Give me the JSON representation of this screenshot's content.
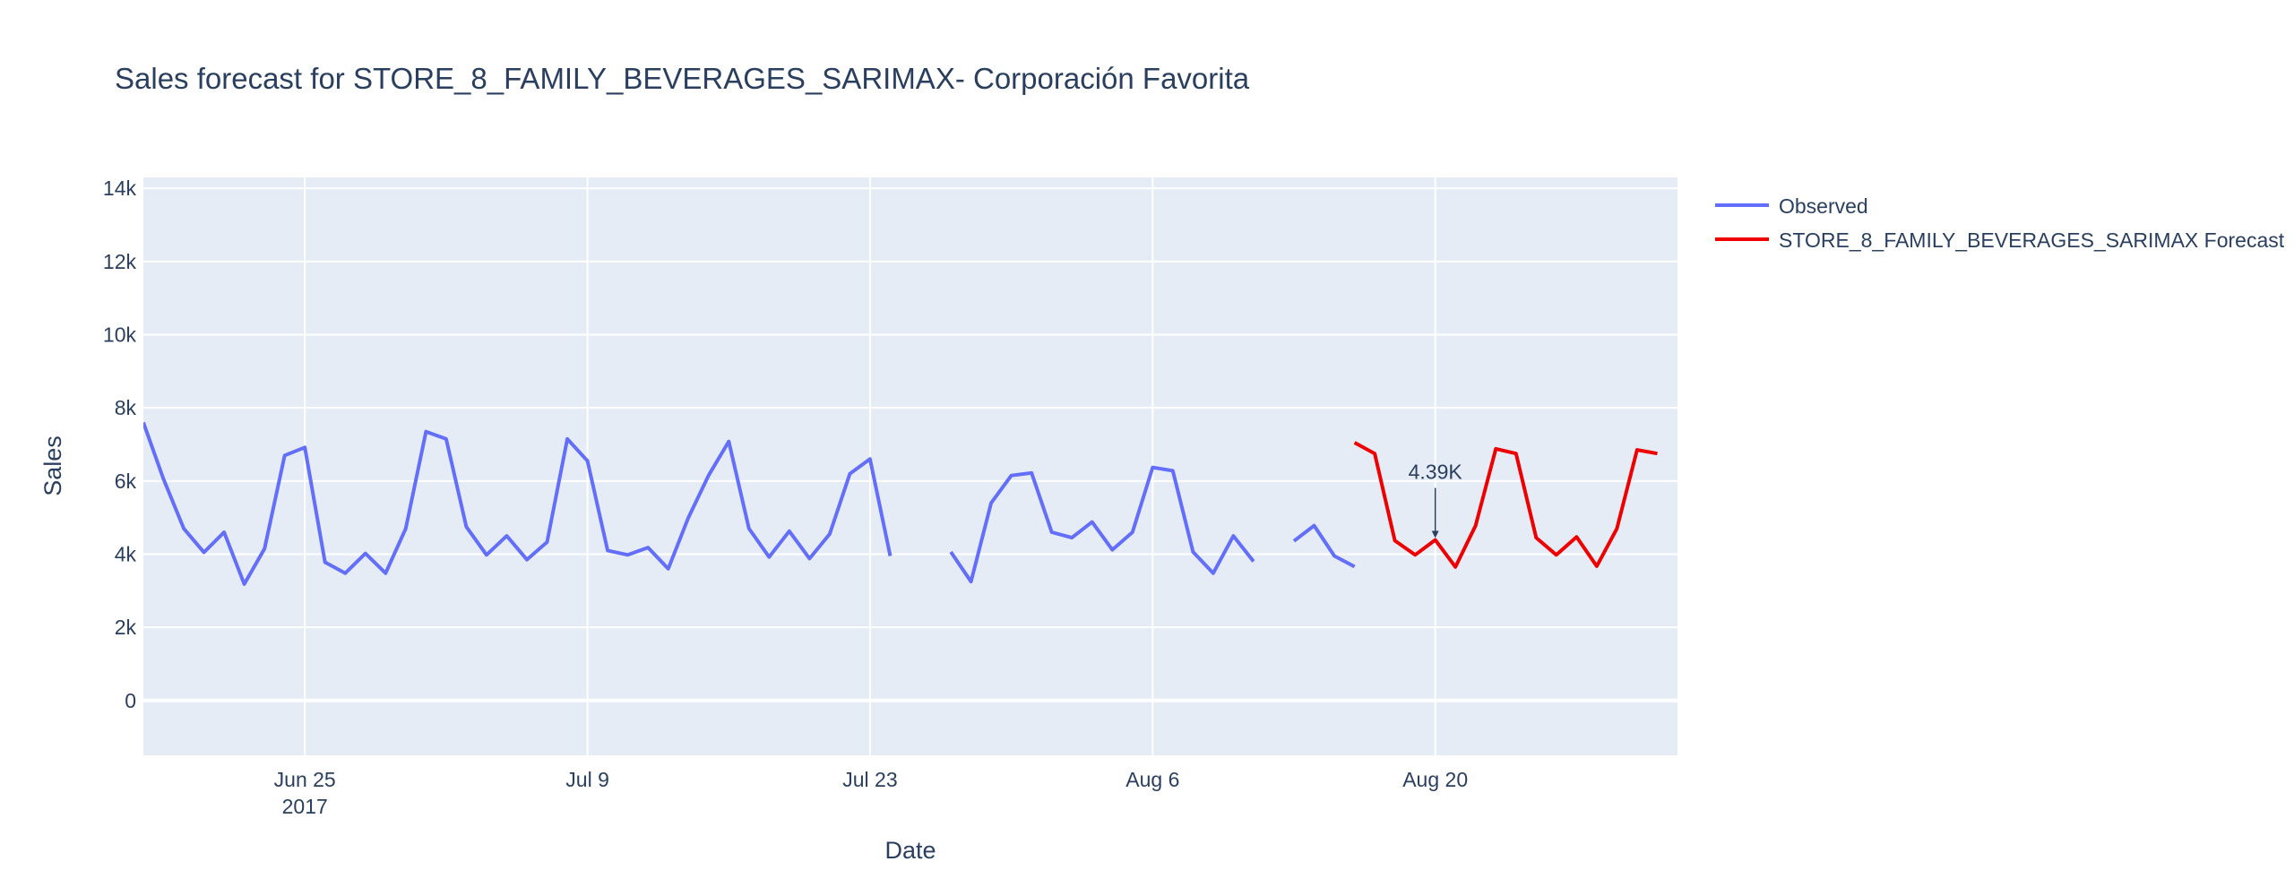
{
  "chart_data": {
    "type": "line",
    "title": "Sales forecast for STORE_8_FAMILY_BEVERAGES_SARIMAX- Corporación Favorita",
    "xlabel": "Date",
    "ylabel": "Sales",
    "x_range": [
      "2017-06-17",
      "2017-09-01"
    ],
    "ylim": [
      -1500,
      14300
    ],
    "x_ticks": [
      {
        "date": "2017-06-25",
        "label": "Jun 25",
        "sublabel": "2017"
      },
      {
        "date": "2017-07-09",
        "label": "Jul 9",
        "sublabel": ""
      },
      {
        "date": "2017-07-23",
        "label": "Jul 23",
        "sublabel": ""
      },
      {
        "date": "2017-08-06",
        "label": "Aug 6",
        "sublabel": ""
      },
      {
        "date": "2017-08-20",
        "label": "Aug 20",
        "sublabel": ""
      }
    ],
    "y_ticks": [
      {
        "value": 0,
        "label": "0"
      },
      {
        "value": 2000,
        "label": "2k"
      },
      {
        "value": 4000,
        "label": "4k"
      },
      {
        "value": 6000,
        "label": "6k"
      },
      {
        "value": 8000,
        "label": "8k"
      },
      {
        "value": 10000,
        "label": "10k"
      },
      {
        "value": 12000,
        "label": "12k"
      },
      {
        "value": 14000,
        "label": "14k"
      }
    ],
    "grid": true,
    "legend_position": "top-right, outside plot",
    "series": [
      {
        "name": "Observed",
        "color": "#636efa",
        "points": [
          [
            "2017-06-17",
            7600
          ],
          [
            "2017-06-18",
            6050
          ],
          [
            "2017-06-19",
            4700
          ],
          [
            "2017-06-20",
            4050
          ],
          [
            "2017-06-21",
            4600
          ],
          [
            "2017-06-22",
            3180
          ],
          [
            "2017-06-23",
            4150
          ],
          [
            "2017-06-24",
            6700
          ],
          [
            "2017-06-25",
            6920
          ],
          [
            "2017-06-26",
            3780
          ],
          [
            "2017-06-27",
            3480
          ],
          [
            "2017-06-28",
            4020
          ],
          [
            "2017-06-29",
            3480
          ],
          [
            "2017-06-30",
            4700
          ],
          [
            "2017-07-01",
            7350
          ],
          [
            "2017-07-02",
            7150
          ],
          [
            "2017-07-03",
            4750
          ],
          [
            "2017-07-04",
            3980
          ],
          [
            "2017-07-05",
            4500
          ],
          [
            "2017-07-06",
            3850
          ],
          [
            "2017-07-07",
            4330
          ],
          [
            "2017-07-08",
            7150
          ],
          [
            "2017-07-09",
            6550
          ],
          [
            "2017-07-10",
            4100
          ],
          [
            "2017-07-11",
            3980
          ],
          [
            "2017-07-12",
            4180
          ],
          [
            "2017-07-13",
            3600
          ],
          [
            "2017-07-14",
            5000
          ],
          [
            "2017-07-15",
            6150
          ],
          [
            "2017-07-16",
            7080
          ],
          [
            "2017-07-17",
            4700
          ],
          [
            "2017-07-18",
            3920
          ],
          [
            "2017-07-19",
            4630
          ],
          [
            "2017-07-20",
            3880
          ],
          [
            "2017-07-21",
            4550
          ],
          [
            "2017-07-22",
            6200
          ],
          [
            "2017-07-23",
            6600
          ],
          [
            "2017-07-24",
            3950
          ],
          [
            "2017-07-27",
            4060
          ],
          [
            "2017-07-28",
            3250
          ],
          [
            "2017-07-29",
            5400
          ],
          [
            "2017-07-30",
            6150
          ],
          [
            "2017-07-31",
            6220
          ],
          [
            "2017-08-01",
            4600
          ],
          [
            "2017-08-02",
            4450
          ],
          [
            "2017-08-03",
            4880
          ],
          [
            "2017-08-04",
            4120
          ],
          [
            "2017-08-05",
            4600
          ],
          [
            "2017-08-06",
            6370
          ],
          [
            "2017-08-07",
            6280
          ],
          [
            "2017-08-08",
            4060
          ],
          [
            "2017-08-09",
            3480
          ],
          [
            "2017-08-10",
            4500
          ],
          [
            "2017-08-11",
            3800
          ],
          [
            "2017-08-13",
            4360
          ],
          [
            "2017-08-14",
            4780
          ],
          [
            "2017-08-15",
            3950
          ],
          [
            "2017-08-16",
            3660
          ]
        ]
      },
      {
        "name": "STORE_8_FAMILY_BEVERAGES_SARIMAX Forecast",
        "color": "#ee0000",
        "points": [
          [
            "2017-08-16",
            7050
          ],
          [
            "2017-08-17",
            6750
          ],
          [
            "2017-08-18",
            4370
          ],
          [
            "2017-08-19",
            3980
          ],
          [
            "2017-08-20",
            4390
          ],
          [
            "2017-08-21",
            3650
          ],
          [
            "2017-08-22",
            4780
          ],
          [
            "2017-08-23",
            6880
          ],
          [
            "2017-08-24",
            6750
          ],
          [
            "2017-08-25",
            4450
          ],
          [
            "2017-08-26",
            3980
          ],
          [
            "2017-08-27",
            4470
          ],
          [
            "2017-08-28",
            3670
          ],
          [
            "2017-08-29",
            4700
          ],
          [
            "2017-08-30",
            6850
          ],
          [
            "2017-08-31",
            6750
          ]
        ]
      }
    ],
    "annotations": [
      {
        "date": "2017-08-20",
        "value": 4390,
        "text": "4.39K"
      }
    ]
  }
}
